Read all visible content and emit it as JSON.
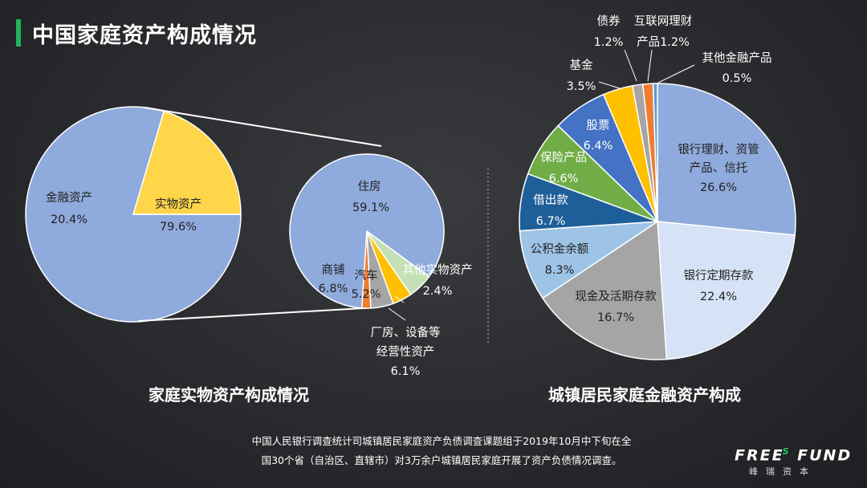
{
  "header": {
    "title": "中国家庭资产构成情况"
  },
  "colors": {
    "accent": "#22b35e",
    "blue": "#8faadc",
    "yellow": "#ffd54a",
    "orange": "#ed7d31",
    "gray": "#a5a5a5",
    "gold": "#ffc000",
    "green_light": "#c5e0b4",
    "light_blue": "#d6e2f5",
    "mid_blue": "#4472c4",
    "green": "#70ad47",
    "dark_blue": "#1f5f99",
    "sky": "#9dc3e6"
  },
  "chart_data": [
    {
      "type": "pie",
      "title": "家庭实物资产构成情况",
      "slices": [
        {
          "label": "实物资产",
          "value": "79.6%",
          "share": 79.6,
          "color": "#8faadc"
        },
        {
          "label": "金融资产",
          "value": "20.4%",
          "share": 20.4,
          "color": "#ffd54a"
        }
      ]
    },
    {
      "type": "pie",
      "title": "家庭实物资产构成情况",
      "slices": [
        {
          "label": "住房",
          "value": "59.1%",
          "share": 59.1,
          "color": "#8faadc"
        },
        {
          "label": "其他实物资产",
          "value": "2.4%",
          "share": 2.4,
          "color": "#ed7d31"
        },
        {
          "label": "厂房、设备等经营性资产",
          "label_lines": [
            "厂房、设备等",
            "经营性资产"
          ],
          "value": "6.1%",
          "share": 6.1,
          "color": "#a5a5a5"
        },
        {
          "label": "汽车",
          "value": "5.2%",
          "share": 5.2,
          "color": "#ffc000"
        },
        {
          "label": "商铺",
          "value": "6.8%",
          "share": 6.8,
          "color": "#c5e0b4"
        }
      ]
    },
    {
      "type": "pie",
      "title": "城镇居民家庭金融资产构成",
      "slices": [
        {
          "label": "银行理财、资管产品、信托",
          "label_lines": [
            "银行理财、资管",
            "产品、信托"
          ],
          "value": "26.6%",
          "share": 26.6,
          "color": "#8faadc"
        },
        {
          "label": "银行定期存款",
          "value": "22.4%",
          "share": 22.4,
          "color": "#d6e2f5"
        },
        {
          "label": "现金及活期存款",
          "value": "16.7%",
          "share": 16.7,
          "color": "#a5a5a5"
        },
        {
          "label": "公积金余额",
          "value": "8.3%",
          "share": 8.3,
          "color": "#9dc3e6"
        },
        {
          "label": "借出款",
          "value": "6.7%",
          "share": 6.7,
          "color": "#1f5f99"
        },
        {
          "label": "保险产品",
          "value": "6.6%",
          "share": 6.6,
          "color": "#70ad47"
        },
        {
          "label": "股票",
          "value": "6.4%",
          "share": 6.4,
          "color": "#4472c4"
        },
        {
          "label": "基金",
          "value": "3.5%",
          "share": 3.5,
          "color": "#ffc000"
        },
        {
          "label": "债券",
          "value": "1.2%",
          "share": 1.2,
          "color": "#a5a5a5"
        },
        {
          "label": "互联网理财产品",
          "label_lines": [
            "互联网理财",
            "产品1.2%"
          ],
          "value": "1.2%",
          "share": 1.2,
          "color": "#ed7d31"
        },
        {
          "label": "其他金融产品",
          "value": "0.5%",
          "share": 0.5,
          "color": "#5b9bd5"
        }
      ]
    }
  ],
  "source": {
    "line1": "中国人民银行调查统计司城镇居民家庭资产负债调查课题组于2019年10月中下旬在全",
    "line2": "国30个省（自治区、直辖市）对3万余户城镇居民家庭开展了资产负债情况调查。"
  },
  "logo": {
    "main": "FREE",
    "s": "S",
    "fund": "FUND",
    "sub": "峰瑞资本"
  }
}
